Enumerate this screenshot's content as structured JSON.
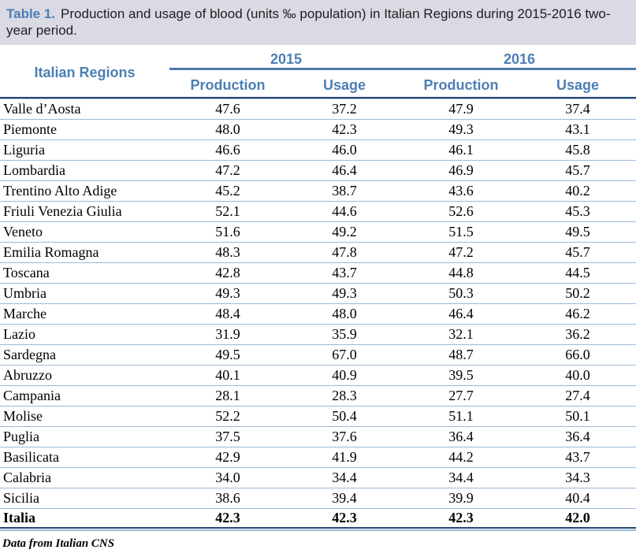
{
  "title": {
    "label": "Table 1.",
    "text": "Production and usage of blood (units ‰ population) in Italian Regions during 2015-2016 two-year period."
  },
  "table": {
    "region_header": "Italian Regions",
    "year_groups": [
      {
        "year": "2015",
        "columns": [
          "Production",
          "Usage"
        ]
      },
      {
        "year": "2016",
        "columns": [
          "Production",
          "Usage"
        ]
      }
    ],
    "rows": [
      {
        "region": "Valle d’Aosta",
        "values": [
          "47.6",
          "37.2",
          "47.9",
          "37.4"
        ],
        "bold": false
      },
      {
        "region": "Piemonte",
        "values": [
          "48.0",
          "42.3",
          "49.3",
          "43.1"
        ],
        "bold": false
      },
      {
        "region": "Liguria",
        "values": [
          "46.6",
          "46.0",
          "46.1",
          "45.8"
        ],
        "bold": false
      },
      {
        "region": "Lombardia",
        "values": [
          "47.2",
          "46.4",
          "46.9",
          "45.7"
        ],
        "bold": false
      },
      {
        "region": "Trentino Alto Adige",
        "values": [
          "45.2",
          "38.7",
          "43.6",
          "40.2"
        ],
        "bold": false
      },
      {
        "region": "Friuli Venezia Giulia",
        "values": [
          "52.1",
          "44.6",
          "52.6",
          "45.3"
        ],
        "bold": false
      },
      {
        "region": "Veneto",
        "values": [
          "51.6",
          "49.2",
          "51.5",
          "49.5"
        ],
        "bold": false
      },
      {
        "region": "Emilia Romagna",
        "values": [
          "48.3",
          "47.8",
          "47.2",
          "45.7"
        ],
        "bold": false
      },
      {
        "region": "Toscana",
        "values": [
          "42.8",
          "43.7",
          "44.8",
          "44.5"
        ],
        "bold": false
      },
      {
        "region": "Umbria",
        "values": [
          "49.3",
          "49.3",
          "50.3",
          "50.2"
        ],
        "bold": false
      },
      {
        "region": "Marche",
        "values": [
          "48.4",
          "48.0",
          "46.4",
          "46.2"
        ],
        "bold": false
      },
      {
        "region": "Lazio",
        "values": [
          "31.9",
          "35.9",
          "32.1",
          "36.2"
        ],
        "bold": false
      },
      {
        "region": "Sardegna",
        "values": [
          "49.5",
          "67.0",
          "48.7",
          "66.0"
        ],
        "bold": false
      },
      {
        "region": "Abruzzo",
        "values": [
          "40.1",
          "40.9",
          "39.5",
          "40.0"
        ],
        "bold": false
      },
      {
        "region": "Campania",
        "values": [
          "28.1",
          "28.3",
          "27.7",
          "27.4"
        ],
        "bold": false
      },
      {
        "region": "Molise",
        "values": [
          "52.2",
          "50.4",
          "51.1",
          "50.1"
        ],
        "bold": false
      },
      {
        "region": "Puglia",
        "values": [
          "37.5",
          "37.6",
          "36.4",
          "36.4"
        ],
        "bold": false
      },
      {
        "region": "Basilicata",
        "values": [
          "42.9",
          "41.9",
          "44.2",
          "43.7"
        ],
        "bold": false
      },
      {
        "region": "Calabria",
        "values": [
          "34.0",
          "34.4",
          "34.4",
          "34.3"
        ],
        "bold": false
      },
      {
        "region": "Sicilia",
        "values": [
          "38.6",
          "39.4",
          "39.9",
          "40.4"
        ],
        "bold": false
      },
      {
        "region": "Italia",
        "values": [
          "42.3",
          "42.3",
          "42.3",
          "42.0"
        ],
        "bold": true
      }
    ]
  },
  "footer": {
    "source": "Data from Italian CNS"
  },
  "colors": {
    "title_bg": "#d9dae3",
    "accent_blue": "#4c7fb5",
    "year_underline": "#4d7aa9",
    "dark_navy_rule": "#24466f",
    "light_blue_rule": "#9db8d6"
  }
}
